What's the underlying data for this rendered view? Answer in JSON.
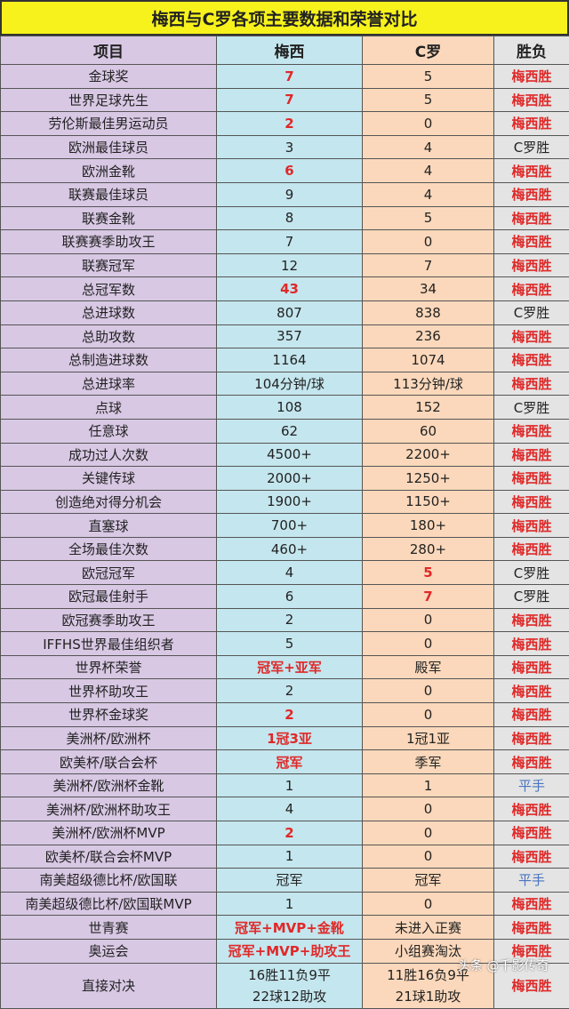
{
  "title": "梅西与C罗各项主要数据和荣誉对比",
  "headers": [
    "项目",
    "梅西",
    "C罗",
    "胜负"
  ],
  "colors": {
    "item": "#d8c8e4",
    "messi": "#c4e6ee",
    "ronaldo": "#fbd8bb",
    "result": "#e4e4e4",
    "highlight": "#e02828",
    "draw": "#4a74c0"
  },
  "rows": [
    {
      "item": "金球奖",
      "messi": "7",
      "ronaldo": "5",
      "result": "梅西胜",
      "hl": "m"
    },
    {
      "item": "世界足球先生",
      "messi": "7",
      "ronaldo": "5",
      "result": "梅西胜",
      "hl": "m"
    },
    {
      "item": "劳伦斯最佳男运动员",
      "messi": "2",
      "ronaldo": "0",
      "result": "梅西胜",
      "hl": "m"
    },
    {
      "item": "欧洲最佳球员",
      "messi": "3",
      "ronaldo": "4",
      "result": "C罗胜",
      "hl": ""
    },
    {
      "item": "欧洲金靴",
      "messi": "6",
      "ronaldo": "4",
      "result": "梅西胜",
      "hl": "m"
    },
    {
      "item": "联赛最佳球员",
      "messi": "9",
      "ronaldo": "4",
      "result": "梅西胜",
      "hl": ""
    },
    {
      "item": "联赛金靴",
      "messi": "8",
      "ronaldo": "5",
      "result": "梅西胜",
      "hl": ""
    },
    {
      "item": "联赛赛季助攻王",
      "messi": "7",
      "ronaldo": "0",
      "result": "梅西胜",
      "hl": ""
    },
    {
      "item": "联赛冠军",
      "messi": "12",
      "ronaldo": "7",
      "result": "梅西胜",
      "hl": ""
    },
    {
      "item": "总冠军数",
      "messi": "43",
      "ronaldo": "34",
      "result": "梅西胜",
      "hl": "m"
    },
    {
      "item": "总进球数",
      "messi": "807",
      "ronaldo": "838",
      "result": "C罗胜",
      "hl": ""
    },
    {
      "item": "总助攻数",
      "messi": "357",
      "ronaldo": "236",
      "result": "梅西胜",
      "hl": ""
    },
    {
      "item": "总制造进球数",
      "messi": "1164",
      "ronaldo": "1074",
      "result": "梅西胜",
      "hl": ""
    },
    {
      "item": "总进球率",
      "messi": "104分钟/球",
      "ronaldo": "113分钟/球",
      "result": "梅西胜",
      "hl": ""
    },
    {
      "item": "点球",
      "messi": "108",
      "ronaldo": "152",
      "result": "C罗胜",
      "hl": ""
    },
    {
      "item": "任意球",
      "messi": "62",
      "ronaldo": "60",
      "result": "梅西胜",
      "hl": ""
    },
    {
      "item": "成功过人次数",
      "messi": "4500+",
      "ronaldo": "2200+",
      "result": "梅西胜",
      "hl": ""
    },
    {
      "item": "关键传球",
      "messi": "2000+",
      "ronaldo": "1250+",
      "result": "梅西胜",
      "hl": ""
    },
    {
      "item": "创造绝对得分机会",
      "messi": "1900+",
      "ronaldo": "1150+",
      "result": "梅西胜",
      "hl": ""
    },
    {
      "item": "直塞球",
      "messi": "700+",
      "ronaldo": "180+",
      "result": "梅西胜",
      "hl": ""
    },
    {
      "item": "全场最佳次数",
      "messi": "460+",
      "ronaldo": "280+",
      "result": "梅西胜",
      "hl": ""
    },
    {
      "item": "欧冠冠军",
      "messi": "4",
      "ronaldo": "5",
      "result": "C罗胜",
      "hl": "r"
    },
    {
      "item": "欧冠最佳射手",
      "messi": "6",
      "ronaldo": "7",
      "result": "C罗胜",
      "hl": "r"
    },
    {
      "item": "欧冠赛季助攻王",
      "messi": "2",
      "ronaldo": "0",
      "result": "梅西胜",
      "hl": ""
    },
    {
      "item": "IFFHS世界最佳组织者",
      "messi": "5",
      "ronaldo": "0",
      "result": "梅西胜",
      "hl": ""
    },
    {
      "item": "世界杯荣誉",
      "messi": "冠军+亚军",
      "ronaldo": "殿军",
      "result": "梅西胜",
      "hl": "m"
    },
    {
      "item": "世界杯助攻王",
      "messi": "2",
      "ronaldo": "0",
      "result": "梅西胜",
      "hl": ""
    },
    {
      "item": "世界杯金球奖",
      "messi": "2",
      "ronaldo": "0",
      "result": "梅西胜",
      "hl": "m"
    },
    {
      "item": "美洲杯/欧洲杯",
      "messi": "1冠3亚",
      "ronaldo": "1冠1亚",
      "result": "梅西胜",
      "hl": "m"
    },
    {
      "item": "欧美杯/联合会杯",
      "messi": "冠军",
      "ronaldo": "季军",
      "result": "梅西胜",
      "hl": "m"
    },
    {
      "item": "美洲杯/欧洲杯金靴",
      "messi": "1",
      "ronaldo": "1",
      "result": "平手",
      "hl": ""
    },
    {
      "item": "美洲杯/欧洲杯助攻王",
      "messi": "4",
      "ronaldo": "0",
      "result": "梅西胜",
      "hl": ""
    },
    {
      "item": "美洲杯/欧洲杯MVP",
      "messi": "2",
      "ronaldo": "0",
      "result": "梅西胜",
      "hl": "m"
    },
    {
      "item": "欧美杯/联合会杯MVP",
      "messi": "1",
      "ronaldo": "0",
      "result": "梅西胜",
      "hl": ""
    },
    {
      "item": "南美超级德比杯/欧国联",
      "messi": "冠军",
      "ronaldo": "冠军",
      "result": "平手",
      "hl": ""
    },
    {
      "item": "南美超级德比杯/欧国联MVP",
      "messi": "1",
      "ronaldo": "0",
      "result": "梅西胜",
      "hl": ""
    },
    {
      "item": "世青赛",
      "messi": "冠军+MVP+金靴",
      "ronaldo": "未进入正赛",
      "result": "梅西胜",
      "hl": "m"
    },
    {
      "item": "奥运会",
      "messi": "冠军+MVP+助攻王",
      "ronaldo": "小组赛淘汰",
      "result": "梅西胜",
      "hl": "m"
    }
  ],
  "head_to_head": {
    "item": "直接对决",
    "messi_line1": "16胜11负9平",
    "messi_line2": "22球12助攻",
    "ronaldo_line1": "11胜16负9平",
    "ronaldo_line2": "21球1助攻",
    "result": "梅西胜"
  },
  "watermark": "头条 @千影传奇"
}
